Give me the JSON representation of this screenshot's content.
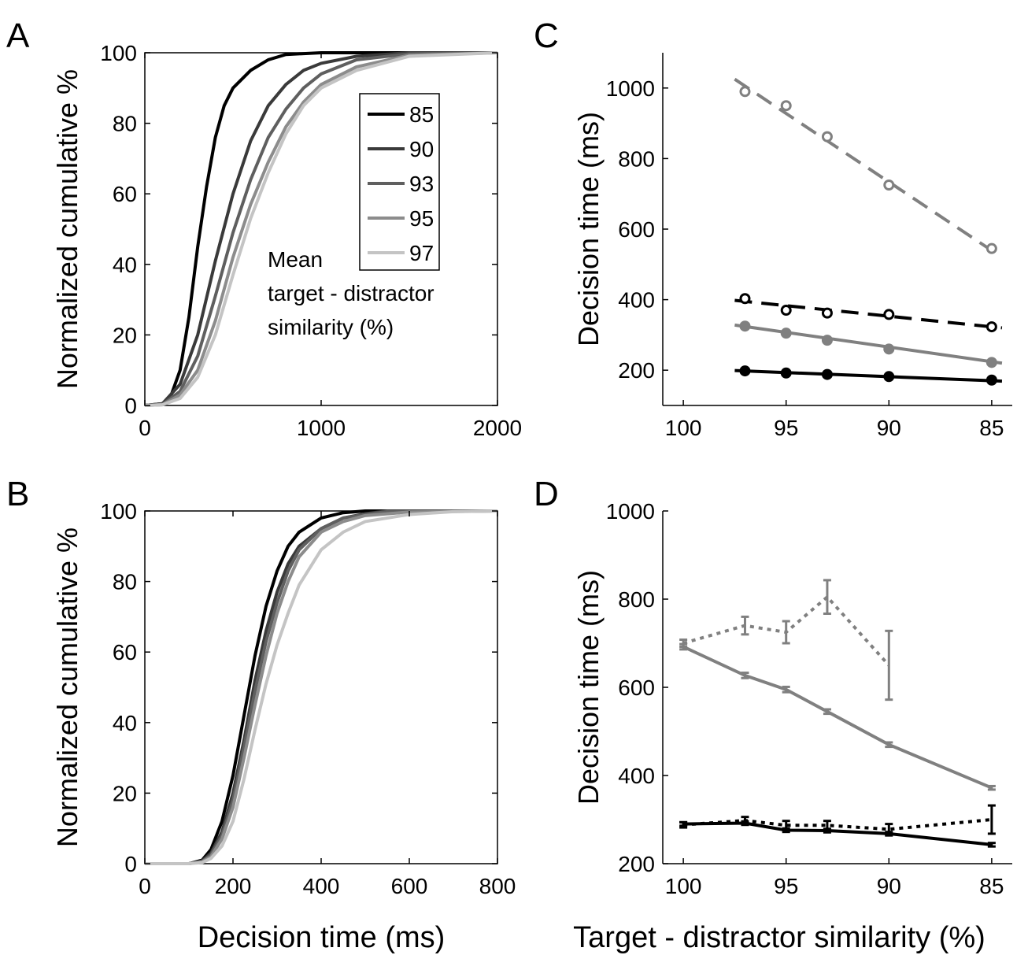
{
  "figure": {
    "xlabel_left": "Decision time (ms)",
    "xlabel_right": "Target - distractor similarity (%)"
  },
  "chart_data": [
    {
      "panel": "A",
      "type": "line",
      "xlabel": "",
      "ylabel": "Normalized cumulative %",
      "xlim": [
        0,
        2000
      ],
      "ylim": [
        0,
        100
      ],
      "xticks": [
        "0",
        "1000",
        "2000"
      ],
      "yticks": [
        "0",
        "20",
        "40",
        "60",
        "80",
        "100"
      ],
      "legend": {
        "placement": "upper-right",
        "entries": [
          "85",
          "90",
          "93",
          "95",
          "97"
        ],
        "annotation": [
          "Mean",
          "target - distractor",
          "similarity (%)"
        ]
      },
      "series": [
        {
          "name": "85",
          "color": "#000000",
          "x": [
            0,
            100,
            150,
            200,
            250,
            300,
            350,
            400,
            450,
            500,
            600,
            700,
            800,
            1000,
            2000
          ],
          "values": [
            0,
            0.5,
            3,
            10,
            25,
            45,
            62,
            76,
            85,
            90,
            95,
            98,
            99.5,
            100,
            100
          ]
        },
        {
          "name": "90",
          "color": "#3a3a3a",
          "x": [
            0,
            100,
            200,
            300,
            400,
            500,
            600,
            700,
            800,
            900,
            1000,
            1200,
            1500,
            2000
          ],
          "values": [
            0,
            0.5,
            6,
            20,
            41,
            60,
            75,
            85,
            91,
            95,
            97,
            99,
            100,
            100
          ]
        },
        {
          "name": "93",
          "color": "#5f5f5f",
          "x": [
            0,
            100,
            200,
            300,
            400,
            500,
            600,
            700,
            800,
            900,
            1000,
            1200,
            1500,
            2000
          ],
          "values": [
            0,
            0.3,
            4,
            14,
            31,
            49,
            64,
            76,
            84,
            90,
            94,
            98,
            99.7,
            100
          ]
        },
        {
          "name": "95",
          "color": "#8c8c8c",
          "x": [
            0,
            100,
            200,
            300,
            400,
            500,
            600,
            700,
            800,
            900,
            1000,
            1200,
            1500,
            2000
          ],
          "values": [
            0,
            0.2,
            3,
            10,
            24,
            42,
            57,
            69,
            79,
            86,
            91,
            96,
            99.3,
            100
          ]
        },
        {
          "name": "97",
          "color": "#c4c4c4",
          "x": [
            0,
            100,
            200,
            300,
            400,
            500,
            600,
            700,
            800,
            900,
            1000,
            1200,
            1500,
            2000
          ],
          "values": [
            0,
            0.2,
            2,
            8,
            20,
            37,
            53,
            66,
            77,
            85,
            90,
            95,
            99,
            100
          ]
        }
      ]
    },
    {
      "panel": "B",
      "type": "line",
      "xlabel": "Decision time (ms)",
      "ylabel": "Normalized cumulative %",
      "xlim": [
        0,
        800
      ],
      "ylim": [
        0,
        100
      ],
      "xticks": [
        "0",
        "200",
        "400",
        "600",
        "800"
      ],
      "yticks": [
        "0",
        "20",
        "40",
        "60",
        "80",
        "100"
      ],
      "series": [
        {
          "name": "85",
          "color": "#000000",
          "x": [
            0,
            100,
            130,
            150,
            175,
            200,
            225,
            250,
            275,
            300,
            325,
            350,
            400,
            450,
            500,
            800
          ],
          "values": [
            0,
            0,
            1,
            4,
            12,
            25,
            42,
            59,
            73,
            83,
            90,
            94,
            98,
            99.5,
            100,
            100
          ]
        },
        {
          "name": "90",
          "color": "#3a3a3a",
          "x": [
            0,
            100,
            130,
            150,
            175,
            200,
            225,
            250,
            275,
            300,
            325,
            350,
            400,
            450,
            500,
            550,
            800
          ],
          "values": [
            0,
            0,
            0.8,
            3,
            9,
            20,
            35,
            52,
            66,
            77,
            85,
            90,
            95,
            98,
            99.2,
            100,
            100
          ]
        },
        {
          "name": "93",
          "color": "#5f5f5f",
          "x": [
            0,
            100,
            130,
            150,
            175,
            200,
            225,
            250,
            275,
            300,
            325,
            350,
            400,
            450,
            500,
            550,
            800
          ],
          "values": [
            0,
            0,
            0.6,
            2.5,
            8,
            18,
            33,
            49,
            63,
            74,
            83,
            89,
            95,
            98,
            99,
            99.8,
            100
          ]
        },
        {
          "name": "95",
          "color": "#8c8c8c",
          "x": [
            0,
            100,
            130,
            150,
            175,
            200,
            225,
            250,
            275,
            300,
            325,
            350,
            400,
            450,
            500,
            600,
            800
          ],
          "values": [
            0,
            0,
            0.5,
            2,
            7,
            16,
            30,
            45,
            59,
            71,
            80,
            87,
            94,
            97,
            98.7,
            99.7,
            100
          ]
        },
        {
          "name": "97",
          "color": "#c4c4c4",
          "x": [
            0,
            100,
            130,
            150,
            175,
            200,
            225,
            250,
            275,
            300,
            325,
            350,
            400,
            450,
            500,
            600,
            700,
            800
          ],
          "values": [
            0,
            0,
            0.3,
            1.5,
            5,
            12,
            24,
            38,
            51,
            62,
            71,
            79,
            89,
            94,
            97,
            99,
            99.8,
            100
          ]
        }
      ]
    },
    {
      "panel": "C",
      "type": "scatter",
      "xlabel": "",
      "ylabel": "Decision time (ms)",
      "xlim": [
        101,
        84
      ],
      "ylim": [
        100,
        1100
      ],
      "xticks": [
        "100",
        "95",
        "90",
        "85"
      ],
      "yticks": [
        "200",
        "400",
        "600",
        "800",
        "1000"
      ],
      "series": [
        {
          "color": "#808080",
          "marker": "open-circle",
          "fit": "dashed",
          "x": [
            97,
            95,
            93,
            90,
            85
          ],
          "values": [
            990,
            950,
            862,
            725,
            545
          ],
          "fit_x": [
            97.5,
            84.5
          ],
          "fit_values": [
            1025,
            520
          ]
        },
        {
          "color": "#000000",
          "marker": "open-circle",
          "fit": "dashed",
          "x": [
            97,
            95,
            93,
            90,
            85
          ],
          "values": [
            403,
            370,
            362,
            358,
            323
          ],
          "fit_x": [
            97.5,
            84.5
          ],
          "fit_values": [
            398,
            320
          ]
        },
        {
          "color": "#808080",
          "marker": "filled-circle",
          "fit": "solid",
          "x": [
            97,
            95,
            93,
            90,
            85
          ],
          "values": [
            325,
            305,
            285,
            260,
            222
          ],
          "fit_x": [
            97.5,
            84.5
          ],
          "fit_values": [
            328,
            220
          ]
        },
        {
          "color": "#000000",
          "marker": "filled-circle",
          "fit": "solid",
          "x": [
            97,
            95,
            93,
            90,
            85
          ],
          "values": [
            198,
            192,
            188,
            182,
            172
          ],
          "fit_x": [
            97.5,
            84.5
          ],
          "fit_values": [
            199,
            169
          ]
        }
      ]
    },
    {
      "panel": "D",
      "type": "line",
      "xlabel": "Target - distractor similarity (%)",
      "ylabel": "Decision time (ms)",
      "xlim": [
        101,
        84
      ],
      "ylim": [
        200,
        1000
      ],
      "xticks": [
        "100",
        "95",
        "90",
        "85"
      ],
      "yticks": [
        "200",
        "400",
        "600",
        "800",
        "1000"
      ],
      "series": [
        {
          "color": "#808080",
          "style": "dotted",
          "x": [
            100,
            97,
            95,
            93,
            90
          ],
          "values": [
            700,
            740,
            725,
            805,
            650
          ],
          "err": [
            8,
            20,
            25,
            38,
            78
          ]
        },
        {
          "color": "#808080",
          "style": "solid",
          "x": [
            100,
            97,
            95,
            93,
            90,
            85
          ],
          "values": [
            692,
            627,
            595,
            545,
            470,
            372
          ],
          "err": [
            6,
            6,
            6,
            5,
            5,
            4
          ]
        },
        {
          "color": "#000000",
          "style": "dotted",
          "x": [
            100,
            97,
            95,
            93,
            90,
            85
          ],
          "values": [
            288,
            298,
            287,
            287,
            278,
            300
          ],
          "err": [
            6,
            8,
            10,
            10,
            12,
            32
          ]
        },
        {
          "color": "#000000",
          "style": "solid",
          "x": [
            100,
            97,
            95,
            93,
            90,
            85
          ],
          "values": [
            290,
            292,
            276,
            275,
            268,
            243
          ],
          "err": [
            4,
            4,
            4,
            4,
            4,
            4
          ]
        }
      ]
    }
  ]
}
